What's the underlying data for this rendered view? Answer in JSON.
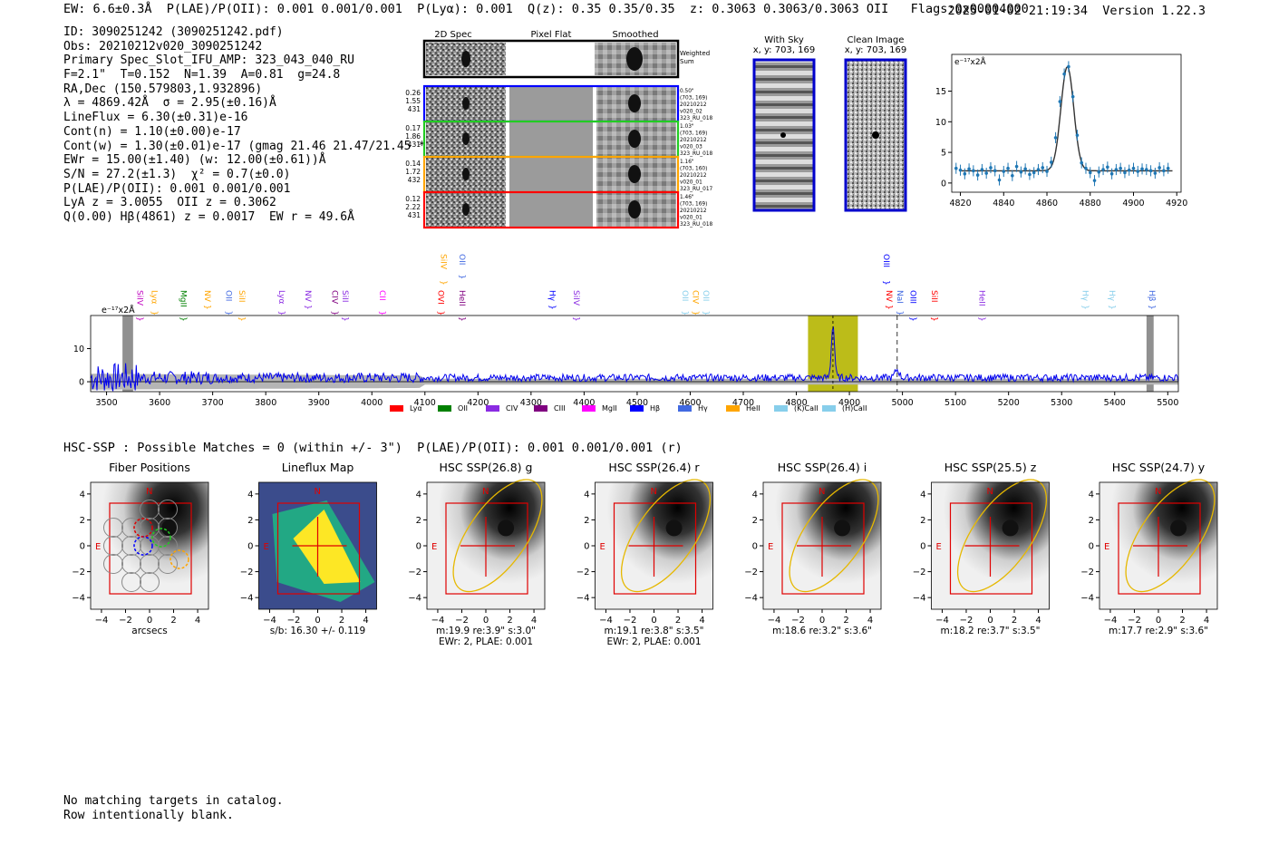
{
  "header": {
    "left": "EW: 6.6±0.3Å  P(LAE)/P(OII): 0.001 0.001/0.001  P(Lyα): 0.001  Q(z): 0.35 0.35/0.35  z: 0.3063 0.3063/0.3063 OII   Flags:0x00004000",
    "right": "2025-01-02 21:19:34  Version 1.22.3"
  },
  "info": [
    "ID: 3090251242 (3090251242.pdf)",
    "Obs: 20210212v020_3090251242",
    "Primary Spec_Slot_IFU_AMP: 323_043_040_RU",
    "F=2.1\"  T=0.152  N=1.39  A=0.81  g=24.8",
    "RA,Dec (150.579803,1.932896)",
    "λ = 4869.42Å  σ = 2.95(±0.16)Å",
    "LineFlux = 6.30(±0.31)e-16",
    "Cont(n) = 1.10(±0.00)e-17",
    "Cont(w) = 1.30(±0.01)e-17 (gmag 21.46 21.47/21.45 *)",
    "EWr = 15.00(±1.40) (w: 12.00(±0.61))Å",
    "S/N = 27.2(±1.3)  χ² = 0.7(±0.0)",
    "P(LAE)/P(OII): 0.001 0.001/0.001",
    "LyA z = 3.0055  OII z = 0.3062",
    "Q(0.00) Hβ(4861) z = 0.0017  EW r = 49.6Å"
  ],
  "cutouts": {
    "col_labels": [
      "2D Spec",
      "Pixel Flat",
      "Smoothed"
    ],
    "weighted_label": "Weighted Sum",
    "rows": [
      {
        "left": [
          "0.26",
          "1.55",
          "431"
        ],
        "right": [
          "0.50\"",
          "(703, 169)",
          "20210212",
          "v020_02",
          "323_RU_018"
        ],
        "color": "#0000ff"
      },
      {
        "left": [
          "0.17",
          "1.86",
          "431"
        ],
        "right": [
          "1.03\"",
          "(703, 169)",
          "20210212",
          "v020_03",
          "323_RU_018"
        ],
        "color": "#22cc22"
      },
      {
        "left": [
          "0.14",
          "1.72",
          "432"
        ],
        "right": [
          "1.16\"",
          "(703, 160)",
          "20210212",
          "v020_01",
          "323_RU_017"
        ],
        "color": "#ffa500"
      },
      {
        "left": [
          "0.12",
          "2.22",
          "431"
        ],
        "right": [
          "1.46\"",
          "(703, 169)",
          "20210212",
          "v020_01",
          "323_RU_018"
        ],
        "color": "#ff0000"
      }
    ]
  },
  "sky": {
    "with_sky_title": "With Sky",
    "clean_title": "Clean Image",
    "coords": "x, y: 703, 169"
  },
  "fit_chart": {
    "type": "line",
    "unit_label": "e⁻¹⁷x2Å",
    "xlim": [
      4816,
      4922
    ],
    "ylim": [
      -1.5,
      21
    ],
    "xticks": [
      4820,
      4840,
      4860,
      4880,
      4900,
      4920
    ],
    "yticks": [
      0,
      5,
      10,
      15
    ],
    "baseline": 2.0,
    "peak_center": 4869.42,
    "peak_amp": 17.0,
    "sigma": 2.95,
    "points_x": [
      4818,
      4820,
      4822,
      4824,
      4826,
      4828,
      4830,
      4832,
      4834,
      4836,
      4838,
      4840,
      4842,
      4844,
      4846,
      4848,
      4850,
      4852,
      4854,
      4856,
      4858,
      4860,
      4862,
      4864,
      4866,
      4868,
      4870,
      4872,
      4874,
      4876,
      4878,
      4880,
      4882,
      4884,
      4886,
      4888,
      4890,
      4892,
      4894,
      4896,
      4898,
      4900,
      4902,
      4904,
      4906,
      4908,
      4910,
      4912,
      4914,
      4916
    ],
    "points_y": [
      2.4,
      2.1,
      1.5,
      2.3,
      2.0,
      1.3,
      2.2,
      1.6,
      2.5,
      2.0,
      0.5,
      1.9,
      2.4,
      1.2,
      2.7,
      1.8,
      2.3,
      1.4,
      1.7,
      2.2,
      2.5,
      1.9,
      3.4,
      7.4,
      13.3,
      17.8,
      19.0,
      14.1,
      7.8,
      3.3,
      2.4,
      1.7,
      0.4,
      1.8,
      2.2,
      2.6,
      1.5,
      2.2,
      2.4,
      1.7,
      2.1,
      2.4,
      1.9,
      2.3,
      2.2,
      2.0,
      1.6,
      2.5,
      2.0,
      2.4
    ]
  },
  "spectrum_chart": {
    "type": "line",
    "unit_label": "e⁻¹⁷x2Å",
    "xlim": [
      3470,
      5520
    ],
    "ylim": [
      -3,
      20
    ],
    "xticks": [
      3500,
      3600,
      3700,
      3800,
      3900,
      4000,
      4100,
      4200,
      4300,
      4400,
      4500,
      4600,
      4700,
      4800,
      4900,
      5000,
      5100,
      5200,
      5300,
      5400,
      5500
    ],
    "yticks": [
      0,
      10
    ],
    "highlight_range": [
      4822,
      4916
    ],
    "line_center": 4869,
    "dashed_line": 4990,
    "hatched_left": [
      3530,
      3550
    ],
    "hatched_right": [
      5460,
      5470
    ],
    "line_labels": [
      {
        "name": "SiIV",
        "x": 3553,
        "color": "#c000c0",
        "row": 1
      },
      {
        "name": "Lyα",
        "x": 3580,
        "color": "#ffa500",
        "row": 1
      },
      {
        "name": "MgII",
        "x": 3635,
        "color": "#008000",
        "row": 1
      },
      {
        "name": "NV",
        "x": 3680,
        "color": "#ffa500",
        "row": 1
      },
      {
        "name": "OII",
        "x": 3720,
        "color": "#4169e1",
        "row": 1
      },
      {
        "name": "SiII",
        "x": 3745,
        "color": "#ffa500",
        "row": 1
      },
      {
        "name": "Lyα",
        "x": 3820,
        "color": "#8a2be2",
        "row": 1
      },
      {
        "name": "NV",
        "x": 3870,
        "color": "#8a2be2",
        "row": 1
      },
      {
        "name": "CIV",
        "x": 3920,
        "color": "#800080",
        "row": 1
      },
      {
        "name": "SiII",
        "x": 3940,
        "color": "#8a2be2",
        "row": 1
      },
      {
        "name": "CII",
        "x": 4010,
        "color": "#ff00ff",
        "row": 1
      },
      {
        "name": "OVI",
        "x": 4120,
        "color": "#ff0000",
        "row": 1
      },
      {
        "name": "HeII",
        "x": 4160,
        "color": "#800080",
        "row": 1
      },
      {
        "name": "SiIV",
        "x": 4125,
        "color": "#ffa500",
        "row": 0
      },
      {
        "name": "OII",
        "x": 4160,
        "color": "#4169e1",
        "row": 0
      },
      {
        "name": "Hγ",
        "x": 4330,
        "color": "#0000ff",
        "row": 1
      },
      {
        "name": "SiIV",
        "x": 4375,
        "color": "#8a2be2",
        "row": 1
      },
      {
        "name": "OII",
        "x": 4580,
        "color": "#87ceeb",
        "row": 1
      },
      {
        "name": "CIV",
        "x": 4600,
        "color": "#ffa500",
        "row": 1
      },
      {
        "name": "OII",
        "x": 4620,
        "color": "#87ceeb",
        "row": 1
      },
      {
        "name": "OIII",
        "x": 4960,
        "color": "#0000ff",
        "row": 0
      },
      {
        "name": "NV",
        "x": 4965,
        "color": "#ff0000",
        "row": 1
      },
      {
        "name": "NaI",
        "x": 4985,
        "color": "#4169e1",
        "row": 1
      },
      {
        "name": "OIII",
        "x": 5010,
        "color": "#0000ff",
        "row": 1
      },
      {
        "name": "SiII",
        "x": 5050,
        "color": "#ff0000",
        "row": 1
      },
      {
        "name": "HeII",
        "x": 5140,
        "color": "#8a2be2",
        "row": 1
      },
      {
        "name": "Hγ",
        "x": 5335,
        "color": "#87ceeb",
        "row": 1
      },
      {
        "name": "Hγ",
        "x": 5385,
        "color": "#87ceeb",
        "row": 1
      },
      {
        "name": "Hβ",
        "x": 5460,
        "color": "#4169e1",
        "row": 1
      }
    ],
    "legend": [
      {
        "name": "Lyα",
        "color": "#ff0000"
      },
      {
        "name": "OII",
        "color": "#008000"
      },
      {
        "name": "CIV",
        "color": "#8a2be2"
      },
      {
        "name": "CIII",
        "color": "#800080"
      },
      {
        "name": "MgII",
        "color": "#ff00ff"
      },
      {
        "name": "Hβ",
        "color": "#0000ff"
      },
      {
        "name": "Hγ",
        "color": "#4169e1"
      },
      {
        "name": "HeII",
        "color": "#ffa500"
      },
      {
        "name": "(K)CaII",
        "color": "#87ceeb"
      },
      {
        "name": "(H)CaII",
        "color": "#87ceeb"
      }
    ]
  },
  "hsc": {
    "title": "HSC-SSP : Possible Matches = 0 (within +/- 3\")  P(LAE)/P(OII): 0.001 0.001/0.001 (r)",
    "axis_ticks": [
      "−4",
      "−2",
      "0",
      "2",
      "4"
    ],
    "north": "N",
    "east": "E",
    "panels": [
      {
        "title": "Fiber Positions",
        "caption1": "arcsecs",
        "caption2": ""
      },
      {
        "title": "Lineflux Map",
        "caption1": "s/b: 16.30 +/- 0.119",
        "caption2": ""
      },
      {
        "title": "HSC SSP(26.8) g",
        "caption1": "m:19.9  re:3.9\"  s:3.0\"",
        "caption2": "EWr: 2, PLAE: 0.001"
      },
      {
        "title": "HSC SSP(26.4) r",
        "caption1": "m:19.1  re:3.8\"  s:3.5\"",
        "caption2": "EWr: 2, PLAE: 0.001"
      },
      {
        "title": "HSC SSP(26.4) i",
        "caption1": "m:18.6  re:3.2\"  s:3.6\"",
        "caption2": ""
      },
      {
        "title": "HSC SSP(25.5) z",
        "caption1": "m:18.2  re:3.7\"  s:3.5\"",
        "caption2": ""
      },
      {
        "title": "HSC SSP(24.7) y",
        "caption1": "m:17.7  re:2.9\"  s:3.6\"",
        "caption2": ""
      }
    ]
  },
  "footer": [
    "No matching targets in catalog.",
    "Row intentionally blank."
  ]
}
